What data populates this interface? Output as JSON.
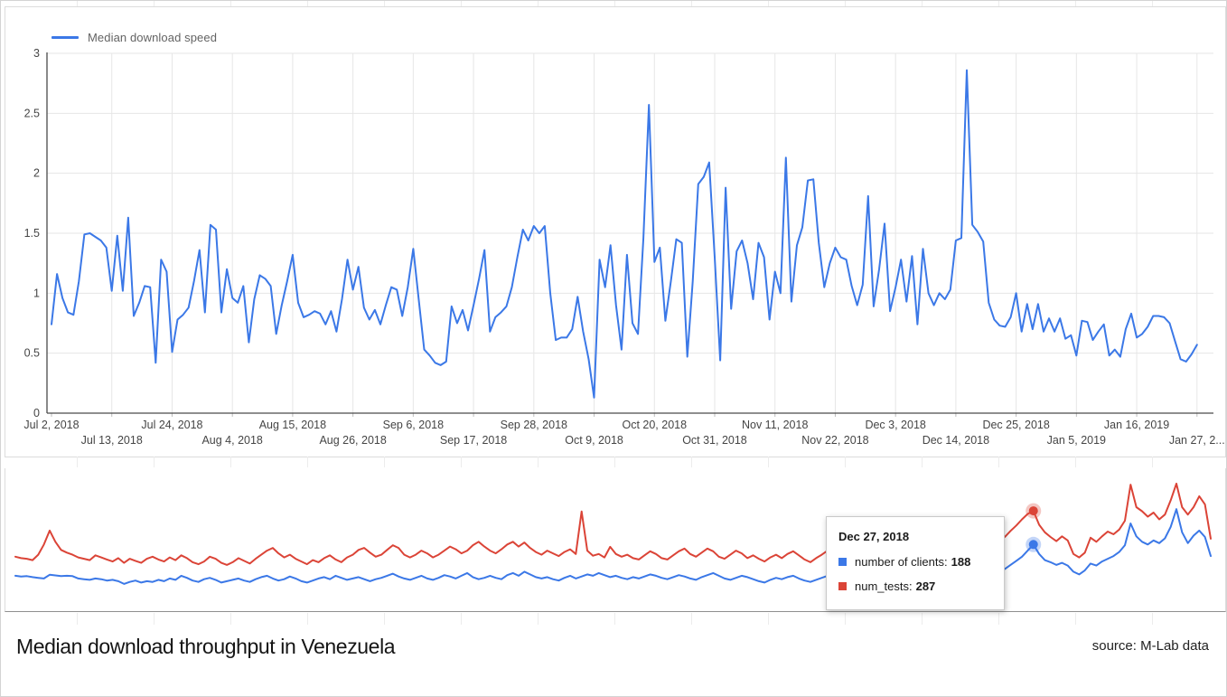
{
  "legend": {
    "label": "Median download speed"
  },
  "colors": {
    "blue": "#3B78E7",
    "red": "#DB4437",
    "grid": "#e6e6e6",
    "axis": "#4a4a4a",
    "tick_text": "#454545"
  },
  "tooltip": {
    "title": "Dec 27, 2018",
    "items": [
      {
        "label": "number of clients:",
        "value": "188",
        "color": "#3B78E7"
      },
      {
        "label": "num_tests:",
        "value": "287",
        "color": "#DB4437"
      }
    ]
  },
  "footer": {
    "title": "Median download throughput in Venezuela",
    "source": "source: M-Lab data"
  },
  "chart_data": [
    {
      "type": "line",
      "title": "Median download speed",
      "ylabel": "",
      "xlabel": "",
      "ylim": [
        0,
        3
      ],
      "y_ticks": [
        0,
        0.5,
        1,
        1.5,
        2,
        2.5,
        3
      ],
      "grid": true,
      "legend_position": "top-left",
      "x_ticks": [
        "Jul 2, 2018",
        "Jul 13, 2018",
        "Jul 24, 2018",
        "Aug 4, 2018",
        "Aug 15, 2018",
        "Aug 26, 2018",
        "Sep 6, 2018",
        "Sep 17, 2018",
        "Sep 28, 2018",
        "Oct 9, 2018",
        "Oct 20, 2018",
        "Oct 31, 2018",
        "Nov 11, 2018",
        "Nov 22, 2018",
        "Dec 3, 2018",
        "Dec 14, 2018",
        "Dec 25, 2018",
        "Jan 5, 2019",
        "Jan 16, 2019",
        "Jan 27, 2..."
      ],
      "x_tick_interval_days": 11,
      "x_range_days": 212,
      "series": [
        {
          "name": "Median download speed",
          "color": "#3B78E7",
          "values": [
            0.74,
            1.16,
            0.96,
            0.84,
            0.82,
            1.1,
            1.49,
            1.5,
            1.47,
            1.44,
            1.38,
            1.02,
            1.48,
            1.02,
            1.63,
            0.81,
            0.92,
            1.06,
            1.05,
            0.42,
            1.28,
            1.18,
            0.51,
            0.78,
            0.82,
            0.88,
            1.1,
            1.36,
            0.84,
            1.57,
            1.53,
            0.84,
            1.2,
            0.96,
            0.92,
            1.06,
            0.59,
            0.95,
            1.15,
            1.12,
            1.06,
            0.66,
            0.9,
            1.1,
            1.32,
            0.92,
            0.8,
            0.82,
            0.85,
            0.83,
            0.74,
            0.85,
            0.68,
            0.95,
            1.28,
            1.03,
            1.22,
            0.88,
            0.78,
            0.86,
            0.74,
            0.9,
            1.05,
            1.03,
            0.81,
            1.05,
            1.37,
            0.95,
            0.53,
            0.48,
            0.42,
            0.4,
            0.43,
            0.89,
            0.75,
            0.86,
            0.69,
            0.9,
            1.12,
            1.36,
            0.68,
            0.8,
            0.84,
            0.89,
            1.05,
            1.3,
            1.53,
            1.44,
            1.56,
            1.5,
            1.56,
            1.0,
            0.61,
            0.63,
            0.63,
            0.7,
            0.97,
            0.68,
            0.45,
            0.13,
            1.28,
            1.05,
            1.4,
            0.9,
            0.53,
            1.32,
            0.75,
            0.66,
            1.46,
            2.57,
            1.26,
            1.38,
            0.77,
            1.1,
            1.45,
            1.42,
            0.47,
            1.1,
            1.91,
            1.97,
            2.09,
            1.3,
            0.44,
            1.88,
            0.87,
            1.35,
            1.44,
            1.25,
            0.95,
            1.42,
            1.3,
            0.78,
            1.18,
            1.0,
            2.13,
            0.93,
            1.4,
            1.55,
            1.94,
            1.95,
            1.42,
            1.05,
            1.25,
            1.38,
            1.3,
            1.28,
            1.06,
            0.9,
            1.07,
            1.81,
            0.89,
            1.2,
            1.58,
            0.85,
            1.05,
            1.28,
            0.93,
            1.31,
            0.74,
            1.37,
            1.0,
            0.9,
            1.0,
            0.95,
            1.03,
            1.44,
            1.46,
            2.86,
            1.57,
            1.51,
            1.43,
            0.92,
            0.78,
            0.73,
            0.72,
            0.8,
            1.0,
            0.68,
            0.91,
            0.7,
            0.91,
            0.68,
            0.79,
            0.68,
            0.79,
            0.62,
            0.65,
            0.48,
            0.77,
            0.76,
            0.61,
            0.68,
            0.74,
            0.48,
            0.53,
            0.47,
            0.7,
            0.83,
            0.63,
            0.66,
            0.72,
            0.81,
            0.81,
            0.8,
            0.75,
            0.6,
            0.45,
            0.43,
            0.49,
            0.57
          ]
        }
      ]
    },
    {
      "type": "line",
      "title": "",
      "ylim": [
        0,
        418
      ],
      "grid": false,
      "highlight": {
        "index": 178,
        "date": "Dec 27, 2018",
        "number_of_clients": 188,
        "num_tests": 287
      },
      "series": [
        {
          "name": "num_tests",
          "color": "#DB4437",
          "values": [
            152,
            148,
            146,
            142,
            158,
            188,
            229,
            196,
            172,
            164,
            158,
            150,
            146,
            142,
            156,
            150,
            144,
            138,
            148,
            134,
            146,
            140,
            134,
            146,
            152,
            144,
            138,
            150,
            142,
            156,
            148,
            136,
            130,
            138,
            152,
            146,
            134,
            128,
            136,
            148,
            140,
            132,
            146,
            158,
            170,
            178,
            162,
            150,
            158,
            146,
            138,
            130,
            142,
            136,
            148,
            156,
            144,
            136,
            150,
            158,
            172,
            178,
            164,
            152,
            158,
            172,
            186,
            178,
            158,
            150,
            158,
            170,
            162,
            150,
            158,
            170,
            182,
            174,
            162,
            170,
            186,
            196,
            182,
            170,
            162,
            174,
            188,
            196,
            182,
            194,
            178,
            166,
            158,
            170,
            162,
            154,
            166,
            174,
            160,
            285,
            170,
            155,
            160,
            150,
            181,
            160,
            152,
            158,
            148,
            144,
            156,
            168,
            160,
            148,
            144,
            156,
            168,
            176,
            160,
            152,
            164,
            176,
            168,
            152,
            146,
            158,
            170,
            162,
            148,
            156,
            146,
            138,
            150,
            158,
            148,
            160,
            168,
            156,
            144,
            136,
            148,
            158,
            170,
            162,
            150,
            142,
            134,
            146,
            158,
            170,
            158,
            146,
            138,
            152,
            164,
            176,
            162,
            150,
            162,
            174,
            186,
            172,
            158,
            148,
            158,
            172,
            190,
            204,
            182,
            170,
            182,
            200,
            224,
            210,
            228,
            244,
            262,
            278,
            287,
            246,
            224,
            210,
            198,
            212,
            200,
            160,
            150,
            164,
            208,
            196,
            212,
            226,
            218,
            232,
            258,
            364,
            298,
            286,
            270,
            282,
            262,
            276,
            318,
            367,
            298,
            276,
            298,
            330,
            306,
            205
          ]
        },
        {
          "name": "number of clients",
          "color": "#3B78E7",
          "values": [
            96,
            94,
            95,
            92,
            90,
            88,
            99,
            97,
            95,
            96,
            95,
            88,
            86,
            84,
            88,
            86,
            82,
            84,
            80,
            72,
            78,
            82,
            76,
            80,
            78,
            84,
            80,
            88,
            84,
            96,
            90,
            82,
            78,
            86,
            90,
            84,
            76,
            80,
            84,
            88,
            82,
            78,
            86,
            92,
            96,
            88,
            82,
            86,
            94,
            88,
            80,
            76,
            82,
            88,
            92,
            86,
            96,
            90,
            84,
            88,
            92,
            86,
            80,
            86,
            90,
            96,
            102,
            94,
            88,
            84,
            90,
            96,
            88,
            84,
            90,
            98,
            94,
            88,
            96,
            104,
            92,
            86,
            90,
            96,
            90,
            86,
            98,
            104,
            96,
            108,
            100,
            92,
            88,
            92,
            86,
            82,
            90,
            96,
            88,
            94,
            100,
            96,
            104,
            98,
            92,
            96,
            90,
            86,
            92,
            88,
            94,
            100,
            96,
            90,
            86,
            92,
            98,
            94,
            88,
            84,
            92,
            98,
            104,
            96,
            88,
            84,
            90,
            96,
            92,
            86,
            80,
            76,
            84,
            90,
            86,
            92,
            96,
            88,
            82,
            78,
            84,
            90,
            96,
            92,
            86,
            80,
            76,
            82,
            88,
            94,
            90,
            84,
            78,
            84,
            90,
            96,
            90,
            84,
            90,
            98,
            104,
            96,
            88,
            82,
            88,
            96,
            104,
            112,
            98,
            92,
            98,
            110,
            124,
            116,
            128,
            140,
            152,
            170,
            188,
            160,
            142,
            136,
            128,
            134,
            126,
            108,
            100,
            112,
            132,
            126,
            138,
            146,
            154,
            166,
            186,
            250,
            212,
            196,
            188,
            200,
            192,
            206,
            240,
            292,
            224,
            192,
            214,
            229,
            210,
            154
          ]
        }
      ]
    }
  ]
}
